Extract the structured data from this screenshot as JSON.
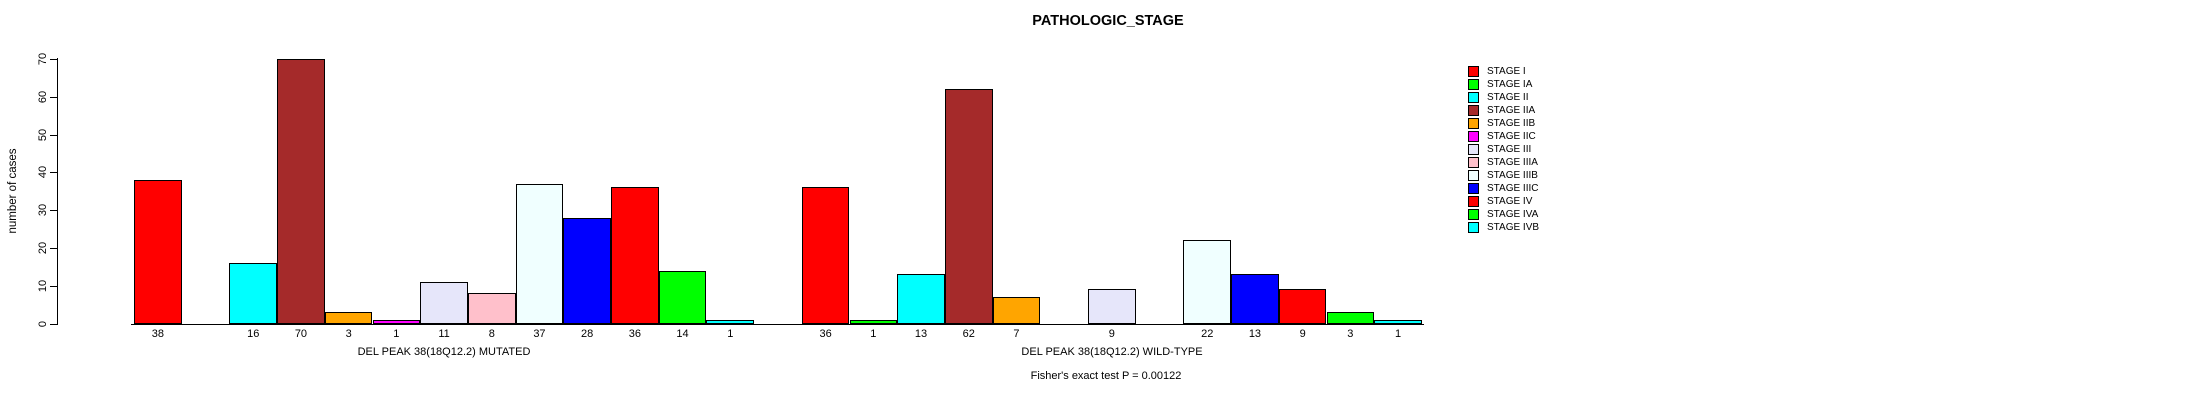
{
  "title": "PATHOLOGIC_STAGE",
  "chart_data": {
    "type": "bar",
    "title": "PATHOLOGIC_STAGE",
    "ylabel": "number of cases",
    "ylim": [
      0,
      70
    ],
    "yticks": [
      0,
      10,
      20,
      30,
      40,
      50,
      60,
      70
    ],
    "grid": false,
    "legend_position": "right",
    "categories": [
      "STAGE I",
      "STAGE IA",
      "STAGE II",
      "STAGE IIA",
      "STAGE IIB",
      "STAGE IIC",
      "STAGE III",
      "STAGE IIIA",
      "STAGE IIIB",
      "STAGE IIIC",
      "STAGE IV",
      "STAGE IVA",
      "STAGE IVB"
    ],
    "colors": [
      "#ff0000",
      "#00ff00",
      "#00ffff",
      "#a52a2a",
      "#ffa500",
      "#ff00ff",
      "#e6e6fa",
      "#ffc0cb",
      "#f0ffff",
      "#0000ff",
      "#ff0000",
      "#00ff00",
      "#00ffff"
    ],
    "series": [
      {
        "name": "DEL PEAK 38(18Q12.2) MUTATED",
        "values": [
          38,
          0,
          16,
          70,
          3,
          1,
          11,
          8,
          37,
          28,
          36,
          14,
          1
        ]
      },
      {
        "name": "DEL PEAK 38(18Q12.2) WILD-TYPE",
        "values": [
          36,
          1,
          13,
          62,
          7,
          0,
          9,
          0,
          22,
          13,
          9,
          3,
          1
        ]
      }
    ],
    "bar_labels_shown_only_when_nonzero": true,
    "annotation": "Fisher's exact test P = 0.00122"
  },
  "legend": {
    "items": [
      {
        "label": "STAGE I",
        "color": "#ff0000"
      },
      {
        "label": "STAGE IA",
        "color": "#00ff00"
      },
      {
        "label": "STAGE II",
        "color": "#00ffff"
      },
      {
        "label": "STAGE IIA",
        "color": "#a52a2a"
      },
      {
        "label": "STAGE IIB",
        "color": "#ffa500"
      },
      {
        "label": "STAGE IIC",
        "color": "#ff00ff"
      },
      {
        "label": "STAGE III",
        "color": "#e6e6fa"
      },
      {
        "label": "STAGE IIIA",
        "color": "#ffc0cb"
      },
      {
        "label": "STAGE IIIB",
        "color": "#f0ffff"
      },
      {
        "label": "STAGE IIIC",
        "color": "#0000ff"
      },
      {
        "label": "STAGE IV",
        "color": "#ff0000"
      },
      {
        "label": "STAGE IVA",
        "color": "#00ff00"
      },
      {
        "label": "STAGE IVB",
        "color": "#00ffff"
      }
    ]
  }
}
